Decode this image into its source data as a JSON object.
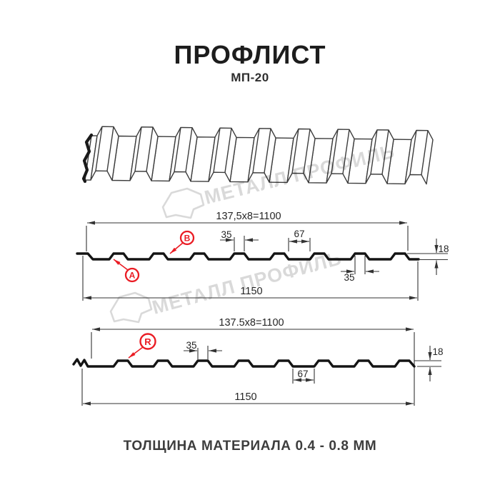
{
  "page": {
    "title": "ПРОФЛИСТ",
    "subtitle": "МП-20",
    "footer": "ТОЛЩИНА МАТЕРИАЛА 0.4 - 0.8 ММ"
  },
  "watermark": {
    "text": "МЕТАЛЛ ПРОФИЛЬ"
  },
  "colors": {
    "accent_red": "#ea1c24",
    "dim_line": "#333333",
    "profile_line": "#141414",
    "watermark_gray": "#d9d9d9",
    "background": "#ffffff"
  },
  "profile_front": {
    "coverage_width": "137,5x8=1100",
    "overall_width": "1150",
    "rib_top_width": "35",
    "rib_top_width_lower": "35",
    "valley_width": "67",
    "height": "18",
    "labels": {
      "a": "A",
      "b": "B"
    }
  },
  "profile_back": {
    "coverage_width": "137.5x8=1100",
    "overall_width": "1150",
    "rib_top_width": "35",
    "valley_width": "67",
    "height": "18",
    "label": "R"
  }
}
